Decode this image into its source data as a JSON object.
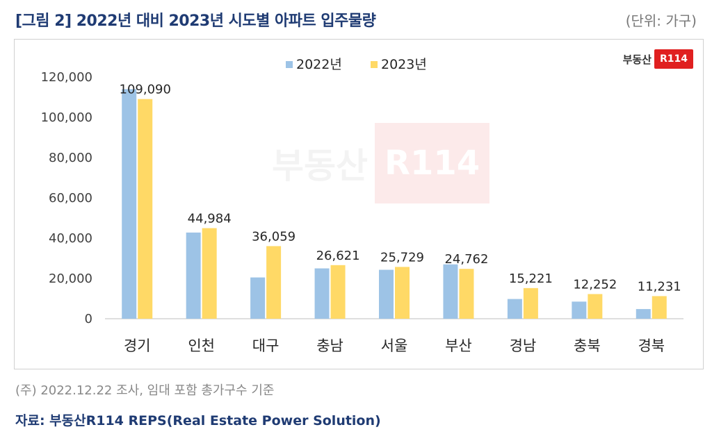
{
  "header": {
    "title": "[그림 2] 2022년 대비 2023년 시도별 아파트 입주물량",
    "unit": "(단위: 가구)"
  },
  "logo": {
    "text": "부동산",
    "badge": "R114"
  },
  "watermark": {
    "text": "부동산",
    "badge": "R114"
  },
  "footer": {
    "note": "(주) 2022.12.22 조사, 임대 포함 총가구수 기준",
    "source": "자료: 부동산R114 REPS(Real Estate Power Solution)"
  },
  "colors": {
    "series_2022": "#9dc3e6",
    "series_2023": "#ffd966",
    "title": "#1f3b73",
    "axis": "#bfbfbf"
  },
  "chart_data": {
    "type": "bar",
    "categories": [
      "경기",
      "인천",
      "대구",
      "충남",
      "서울",
      "부산",
      "경남",
      "충북",
      "경북"
    ],
    "series": [
      {
        "name": "2022년",
        "values": [
          114000,
          42800,
          20500,
          25000,
          24300,
          27000,
          9800,
          8500,
          4800
        ]
      },
      {
        "name": "2023년",
        "values": [
          109090,
          44984,
          36059,
          26621,
          25729,
          24762,
          15221,
          12252,
          11231
        ]
      }
    ],
    "data_labels": [
      "109,090",
      "44,984",
      "36,059",
      "26,621",
      "25,729",
      "24,762",
      "15,221",
      "12,252",
      "11,231"
    ],
    "yticks": [
      "0",
      "20,000",
      "40,000",
      "60,000",
      "80,000",
      "100,000",
      "120,000"
    ],
    "ylim": [
      0,
      120000
    ],
    "legend_position": "top-center",
    "grid": false
  }
}
